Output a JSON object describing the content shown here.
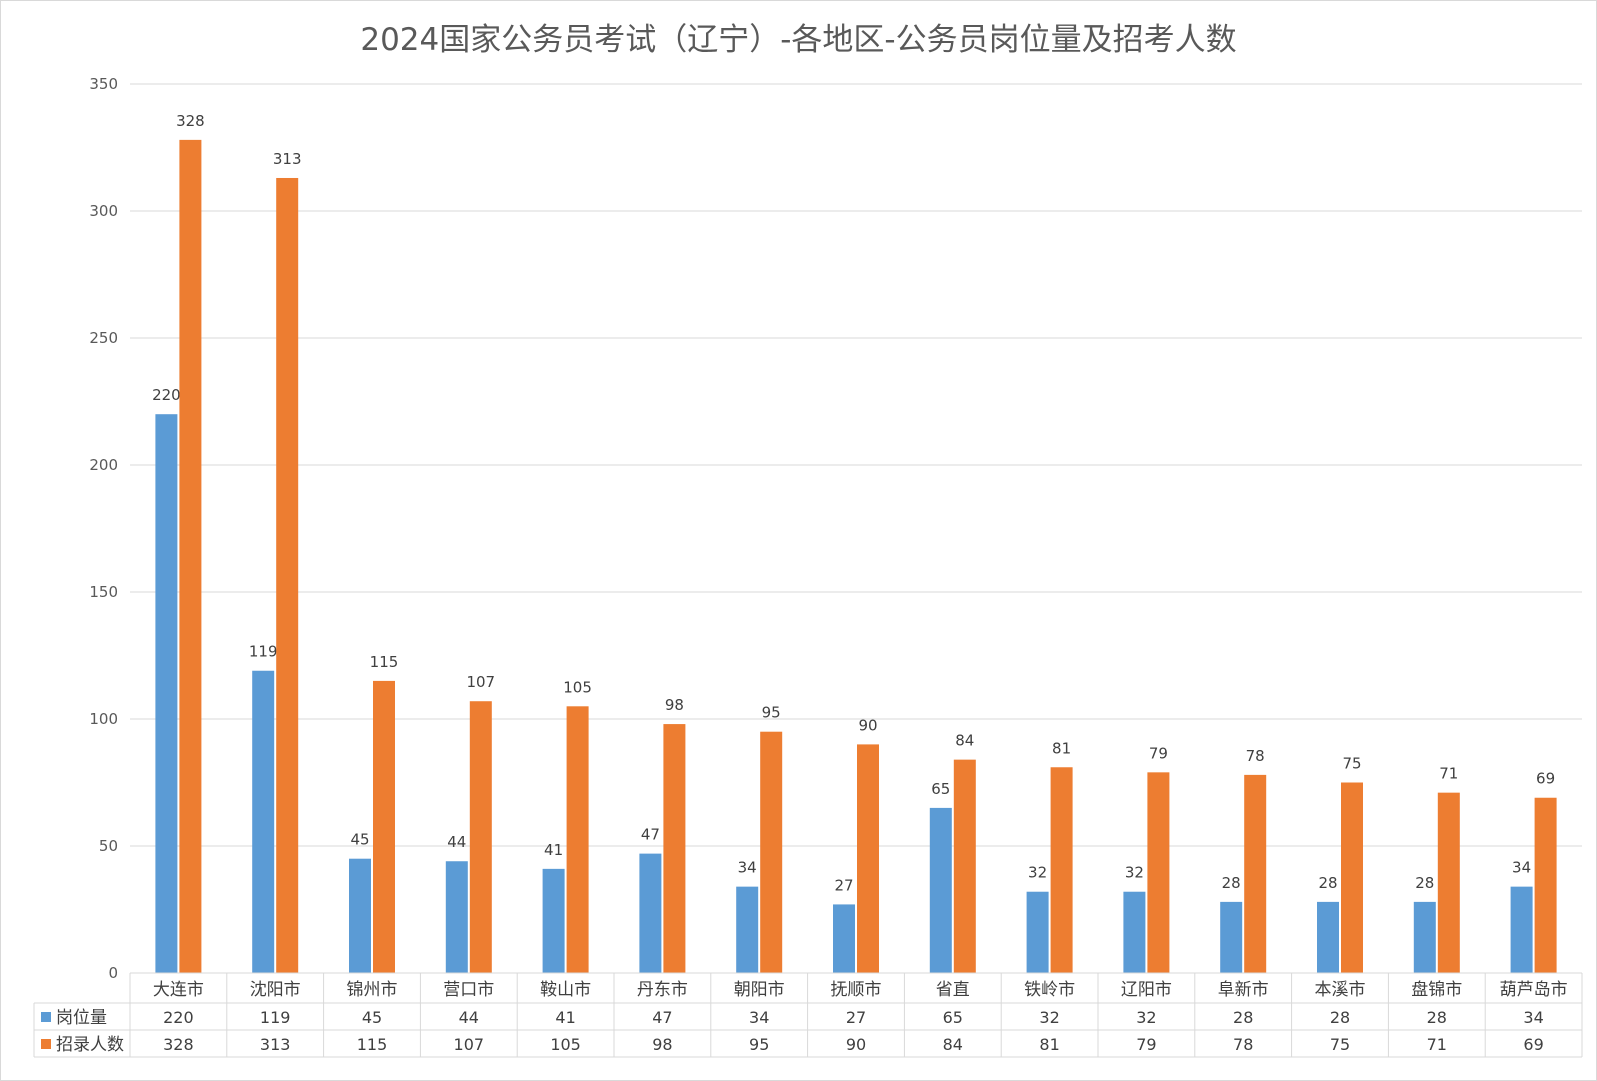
{
  "chart_data": {
    "type": "bar",
    "title": "2024国家公务员考试（辽宁）-各地区-公务员岗位量及招考人数",
    "categories": [
      "大连市",
      "沈阳市",
      "锦州市",
      "营口市",
      "鞍山市",
      "丹东市",
      "朝阳市",
      "抚顺市",
      "省直",
      "铁岭市",
      "辽阳市",
      "阜新市",
      "本溪市",
      "盘锦市",
      "葫芦岛市"
    ],
    "series": [
      {
        "name": "岗位量",
        "color": "#5b9bd5",
        "values": [
          220,
          119,
          45,
          44,
          41,
          47,
          34,
          27,
          65,
          32,
          32,
          28,
          28,
          28,
          34
        ]
      },
      {
        "name": "招录人数",
        "color": "#ed7d31",
        "values": [
          328,
          313,
          115,
          107,
          105,
          98,
          95,
          90,
          84,
          81,
          79,
          78,
          75,
          71,
          69
        ]
      }
    ],
    "ylim": [
      0,
      350
    ],
    "yticks": [
      0,
      50,
      100,
      150,
      200,
      250,
      300,
      350
    ],
    "grid": true,
    "legend": "data-table",
    "data_table": true
  }
}
